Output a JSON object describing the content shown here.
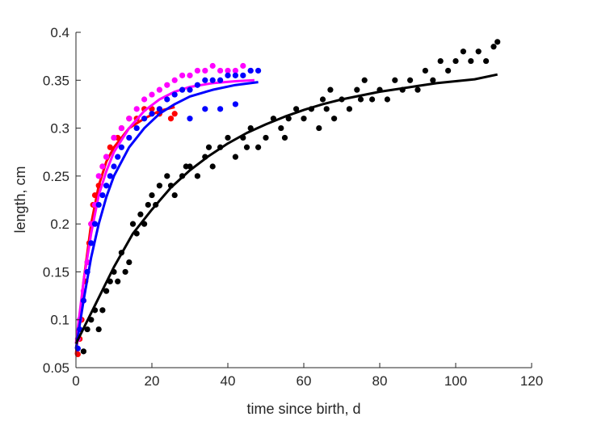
{
  "chart_data": {
    "type": "scatter",
    "title": "",
    "xlabel": "time since birth, d",
    "ylabel": "length, cm",
    "xlim": [
      0,
      120
    ],
    "ylim": [
      0.05,
      0.4
    ],
    "xticks": [
      "0",
      "20",
      "40",
      "60",
      "80",
      "100",
      "120"
    ],
    "yticks": [
      "0.05",
      "0.1",
      "0.15",
      "0.2",
      "0.25",
      "0.3",
      "0.35",
      "0.4"
    ],
    "grid": false,
    "legend": "none",
    "series": [
      {
        "color": "#ff0000",
        "points": [
          [
            0.5,
            0.064
          ],
          [
            1,
            0.08
          ],
          [
            1.5,
            0.1
          ],
          [
            2,
            0.12
          ],
          [
            2.5,
            0.14
          ],
          [
            3,
            0.16
          ],
          [
            3.5,
            0.18
          ],
          [
            4,
            0.2
          ],
          [
            4.5,
            0.22
          ],
          [
            5,
            0.23
          ],
          [
            6,
            0.24
          ],
          [
            7,
            0.26
          ],
          [
            8,
            0.27
          ],
          [
            9,
            0.28
          ],
          [
            10,
            0.29
          ],
          [
            11,
            0.29
          ],
          [
            12,
            0.3
          ],
          [
            14,
            0.31
          ],
          [
            16,
            0.31
          ],
          [
            18,
            0.32
          ],
          [
            20,
            0.32
          ],
          [
            22,
            0.315
          ],
          [
            25,
            0.31
          ],
          [
            26,
            0.315
          ]
        ],
        "fit": [
          [
            0,
            0.064
          ],
          [
            2,
            0.14
          ],
          [
            4,
            0.2
          ],
          [
            6,
            0.24
          ],
          [
            8,
            0.265
          ],
          [
            10,
            0.28
          ],
          [
            14,
            0.3
          ],
          [
            18,
            0.31
          ],
          [
            22,
            0.318
          ],
          [
            26,
            0.322
          ]
        ]
      },
      {
        "color": "#ff00ff",
        "points": [
          [
            0.5,
            0.08
          ],
          [
            1,
            0.1
          ],
          [
            2,
            0.13
          ],
          [
            3,
            0.16
          ],
          [
            4,
            0.2
          ],
          [
            5,
            0.22
          ],
          [
            6,
            0.25
          ],
          [
            7,
            0.26
          ],
          [
            8,
            0.27
          ],
          [
            10,
            0.29
          ],
          [
            12,
            0.3
          ],
          [
            14,
            0.31
          ],
          [
            16,
            0.32
          ],
          [
            18,
            0.33
          ],
          [
            20,
            0.335
          ],
          [
            22,
            0.34
          ],
          [
            24,
            0.345
          ],
          [
            26,
            0.35
          ],
          [
            28,
            0.355
          ],
          [
            30,
            0.355
          ],
          [
            32,
            0.36
          ],
          [
            34,
            0.36
          ],
          [
            36,
            0.365
          ],
          [
            38,
            0.36
          ],
          [
            40,
            0.36
          ],
          [
            42,
            0.36
          ],
          [
            44,
            0.365
          ],
          [
            46,
            0.36
          ]
        ],
        "fit": [
          [
            0,
            0.075
          ],
          [
            2,
            0.14
          ],
          [
            4,
            0.19
          ],
          [
            6,
            0.23
          ],
          [
            8,
            0.255
          ],
          [
            10,
            0.275
          ],
          [
            14,
            0.3
          ],
          [
            18,
            0.318
          ],
          [
            22,
            0.33
          ],
          [
            26,
            0.338
          ],
          [
            30,
            0.343
          ],
          [
            36,
            0.347
          ],
          [
            42,
            0.349
          ],
          [
            47,
            0.35
          ]
        ]
      },
      {
        "color": "#0000ff",
        "points": [
          [
            0.5,
            0.07
          ],
          [
            1,
            0.09
          ],
          [
            2,
            0.12
          ],
          [
            3,
            0.15
          ],
          [
            4,
            0.18
          ],
          [
            5,
            0.2
          ],
          [
            6,
            0.22
          ],
          [
            7,
            0.23
          ],
          [
            8,
            0.24
          ],
          [
            9,
            0.25
          ],
          [
            10,
            0.26
          ],
          [
            11,
            0.27
          ],
          [
            12,
            0.28
          ],
          [
            14,
            0.29
          ],
          [
            16,
            0.3
          ],
          [
            18,
            0.31
          ],
          [
            20,
            0.315
          ],
          [
            22,
            0.32
          ],
          [
            24,
            0.33
          ],
          [
            26,
            0.335
          ],
          [
            28,
            0.34
          ],
          [
            30,
            0.34
          ],
          [
            32,
            0.345
          ],
          [
            34,
            0.35
          ],
          [
            36,
            0.35
          ],
          [
            38,
            0.35
          ],
          [
            40,
            0.355
          ],
          [
            42,
            0.355
          ],
          [
            44,
            0.355
          ],
          [
            46,
            0.36
          ],
          [
            48,
            0.36
          ],
          [
            30,
            0.31
          ],
          [
            34,
            0.32
          ],
          [
            38,
            0.32
          ],
          [
            42,
            0.325
          ]
        ],
        "fit": [
          [
            0,
            0.07
          ],
          [
            2,
            0.12
          ],
          [
            4,
            0.165
          ],
          [
            6,
            0.2
          ],
          [
            8,
            0.228
          ],
          [
            10,
            0.25
          ],
          [
            14,
            0.28
          ],
          [
            18,
            0.3
          ],
          [
            22,
            0.315
          ],
          [
            26,
            0.325
          ],
          [
            30,
            0.333
          ],
          [
            36,
            0.34
          ],
          [
            42,
            0.345
          ],
          [
            48,
            0.348
          ]
        ]
      },
      {
        "color": "#000000",
        "points": [
          [
            2,
            0.067
          ],
          [
            3,
            0.09
          ],
          [
            4,
            0.1
          ],
          [
            5,
            0.11
          ],
          [
            6,
            0.09
          ],
          [
            7,
            0.11
          ],
          [
            8,
            0.13
          ],
          [
            9,
            0.14
          ],
          [
            10,
            0.15
          ],
          [
            11,
            0.14
          ],
          [
            12,
            0.17
          ],
          [
            13,
            0.15
          ],
          [
            14,
            0.16
          ],
          [
            15,
            0.2
          ],
          [
            16,
            0.19
          ],
          [
            17,
            0.21
          ],
          [
            18,
            0.2
          ],
          [
            19,
            0.22
          ],
          [
            20,
            0.23
          ],
          [
            21,
            0.22
          ],
          [
            22,
            0.24
          ],
          [
            24,
            0.25
          ],
          [
            25,
            0.24
          ],
          [
            26,
            0.23
          ],
          [
            28,
            0.25
          ],
          [
            29,
            0.26
          ],
          [
            30,
            0.26
          ],
          [
            32,
            0.25
          ],
          [
            34,
            0.27
          ],
          [
            35,
            0.28
          ],
          [
            36,
            0.26
          ],
          [
            38,
            0.28
          ],
          [
            40,
            0.29
          ],
          [
            42,
            0.27
          ],
          [
            44,
            0.29
          ],
          [
            45,
            0.28
          ],
          [
            46,
            0.3
          ],
          [
            48,
            0.28
          ],
          [
            50,
            0.29
          ],
          [
            52,
            0.31
          ],
          [
            54,
            0.3
          ],
          [
            55,
            0.29
          ],
          [
            56,
            0.31
          ],
          [
            58,
            0.32
          ],
          [
            60,
            0.31
          ],
          [
            62,
            0.32
          ],
          [
            64,
            0.3
          ],
          [
            65,
            0.33
          ],
          [
            66,
            0.32
          ],
          [
            67,
            0.34
          ],
          [
            68,
            0.31
          ],
          [
            70,
            0.33
          ],
          [
            72,
            0.32
          ],
          [
            74,
            0.34
          ],
          [
            75,
            0.33
          ],
          [
            76,
            0.35
          ],
          [
            78,
            0.33
          ],
          [
            80,
            0.34
          ],
          [
            82,
            0.33
          ],
          [
            84,
            0.35
          ],
          [
            86,
            0.34
          ],
          [
            88,
            0.35
          ],
          [
            90,
            0.34
          ],
          [
            92,
            0.36
          ],
          [
            94,
            0.35
          ],
          [
            96,
            0.37
          ],
          [
            98,
            0.36
          ],
          [
            100,
            0.37
          ],
          [
            102,
            0.38
          ],
          [
            104,
            0.37
          ],
          [
            106,
            0.38
          ],
          [
            108,
            0.37
          ],
          [
            110,
            0.385
          ],
          [
            111,
            0.39
          ]
        ],
        "fit": [
          [
            0,
            0.075
          ],
          [
            5,
            0.115
          ],
          [
            10,
            0.155
          ],
          [
            15,
            0.19
          ],
          [
            20,
            0.215
          ],
          [
            25,
            0.238
          ],
          [
            30,
            0.256
          ],
          [
            35,
            0.271
          ],
          [
            40,
            0.284
          ],
          [
            45,
            0.295
          ],
          [
            50,
            0.304
          ],
          [
            55,
            0.312
          ],
          [
            60,
            0.319
          ],
          [
            65,
            0.325
          ],
          [
            70,
            0.33
          ],
          [
            75,
            0.334
          ],
          [
            80,
            0.338
          ],
          [
            85,
            0.341
          ],
          [
            90,
            0.344
          ],
          [
            95,
            0.347
          ],
          [
            100,
            0.349
          ],
          [
            105,
            0.351
          ],
          [
            111,
            0.356
          ]
        ]
      }
    ]
  }
}
